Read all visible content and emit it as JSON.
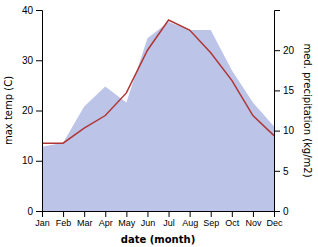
{
  "chart_data": {
    "type": "line",
    "categories": [
      "Jan",
      "Feb",
      "Mar",
      "Apr",
      "May",
      "Jun",
      "Jul",
      "Aug",
      "Sep",
      "Oct",
      "Nov",
      "Dec"
    ],
    "series": [
      {
        "type": "area",
        "axis": "y2",
        "color": "#bcc5e8",
        "values": [
          8.0,
          8.5,
          13.0,
          15.5,
          13.5,
          21.5,
          23.5,
          22.5,
          22.5,
          17.5,
          13.5,
          10.5
        ]
      },
      {
        "type": "line",
        "color": "#b03535",
        "values": [
          13.5,
          13.5,
          16.5,
          19.0,
          23.5,
          32.0,
          38.0,
          36.0,
          31.5,
          26.0,
          19.0,
          15.0
        ]
      }
    ],
    "x_label": "date (month)",
    "y_label": "max temp (C)",
    "y2_label": "med. precipitation (kg/m2)",
    "ylim": [
      0,
      40
    ],
    "yticks": [
      0,
      10,
      20,
      30,
      40
    ],
    "y2lim": [
      0,
      25
    ],
    "y2ticks": [
      0,
      5,
      10,
      15,
      20
    ]
  }
}
